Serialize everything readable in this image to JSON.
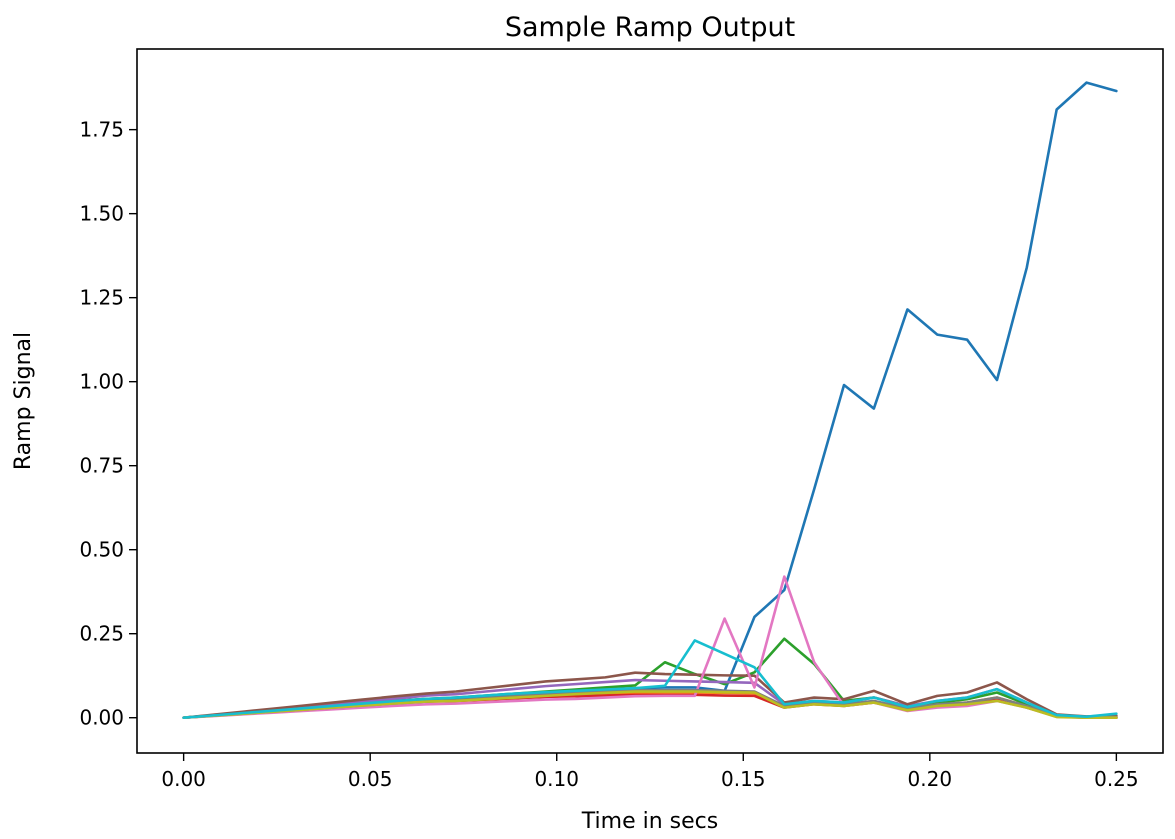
{
  "chart_data": {
    "type": "line",
    "title": "Sample Ramp Output",
    "xlabel": "Time in secs",
    "ylabel": "Ramp Signal",
    "xlim": [
      -0.0125,
      0.2625
    ],
    "ylim": [
      -0.105,
      1.99
    ],
    "xticks": [
      "0.00",
      "0.05",
      "0.10",
      "0.15",
      "0.20",
      "0.25"
    ],
    "xtick_values": [
      0.0,
      0.05,
      0.1,
      0.15,
      0.2,
      0.25
    ],
    "yticks": [
      "0.00",
      "0.25",
      "0.50",
      "0.75",
      "1.00",
      "1.25",
      "1.50",
      "1.75"
    ],
    "ytick_values": [
      0.0,
      0.25,
      0.5,
      0.75,
      1.0,
      1.25,
      1.5,
      1.75
    ],
    "grid": false,
    "x": [
      0.0,
      0.008,
      0.016,
      0.024,
      0.032,
      0.04,
      0.048,
      0.056,
      0.065,
      0.073,
      0.081,
      0.089,
      0.097,
      0.105,
      0.113,
      0.121,
      0.129,
      0.137,
      0.145,
      0.153,
      0.161,
      0.169,
      0.177,
      0.185,
      0.194,
      0.202,
      0.21,
      0.218,
      0.226,
      0.234,
      0.242,
      0.25
    ],
    "series": [
      {
        "color": "#1f77b4",
        "values": [
          0.0,
          0.007,
          0.014,
          0.021,
          0.028,
          0.035,
          0.042,
          0.05,
          0.056,
          0.058,
          0.064,
          0.07,
          0.075,
          0.08,
          0.083,
          0.088,
          0.09,
          0.09,
          0.08,
          0.3,
          0.38,
          0.68,
          0.99,
          0.92,
          1.215,
          1.14,
          1.125,
          1.005,
          1.34,
          1.81,
          1.89,
          1.865
        ]
      },
      {
        "color": "#ff7f0e",
        "values": [
          0.0,
          0.006,
          0.012,
          0.018,
          0.024,
          0.03,
          0.036,
          0.042,
          0.048,
          0.05,
          0.054,
          0.058,
          0.062,
          0.066,
          0.07,
          0.074,
          0.075,
          0.075,
          0.074,
          0.073,
          0.035,
          0.045,
          0.04,
          0.048,
          0.03,
          0.04,
          0.045,
          0.06,
          0.035,
          0.005,
          0.0,
          0.0
        ]
      },
      {
        "color": "#2ca02c",
        "values": [
          0.0,
          0.007,
          0.014,
          0.021,
          0.028,
          0.035,
          0.042,
          0.049,
          0.056,
          0.06,
          0.066,
          0.072,
          0.078,
          0.084,
          0.09,
          0.096,
          0.165,
          0.13,
          0.1,
          0.135,
          0.235,
          0.16,
          0.05,
          0.06,
          0.035,
          0.045,
          0.055,
          0.075,
          0.04,
          0.008,
          0.002,
          0.002
        ]
      },
      {
        "color": "#d62728",
        "values": [
          0.0,
          0.006,
          0.012,
          0.018,
          0.024,
          0.03,
          0.036,
          0.042,
          0.048,
          0.05,
          0.054,
          0.058,
          0.062,
          0.064,
          0.066,
          0.068,
          0.068,
          0.068,
          0.066,
          0.065,
          0.03,
          0.04,
          0.035,
          0.045,
          0.025,
          0.035,
          0.04,
          0.055,
          0.03,
          0.004,
          0.0,
          0.0
        ]
      },
      {
        "color": "#9467bd",
        "values": [
          0.0,
          0.008,
          0.016,
          0.024,
          0.032,
          0.04,
          0.048,
          0.056,
          0.066,
          0.07,
          0.078,
          0.086,
          0.094,
          0.1,
          0.106,
          0.112,
          0.11,
          0.108,
          0.106,
          0.104,
          0.04,
          0.05,
          0.045,
          0.06,
          0.035,
          0.05,
          0.06,
          0.085,
          0.045,
          0.008,
          0.002,
          0.004
        ]
      },
      {
        "color": "#8c564b",
        "values": [
          0.0,
          0.009,
          0.018,
          0.027,
          0.036,
          0.045,
          0.054,
          0.063,
          0.072,
          0.078,
          0.088,
          0.098,
          0.108,
          0.114,
          0.12,
          0.134,
          0.13,
          0.128,
          0.126,
          0.125,
          0.045,
          0.06,
          0.055,
          0.08,
          0.04,
          0.065,
          0.075,
          0.105,
          0.055,
          0.01,
          0.004,
          0.006
        ]
      },
      {
        "color": "#e377c2",
        "values": [
          0.0,
          0.005,
          0.01,
          0.015,
          0.02,
          0.025,
          0.03,
          0.035,
          0.04,
          0.042,
          0.046,
          0.05,
          0.054,
          0.056,
          0.06,
          0.064,
          0.065,
          0.065,
          0.295,
          0.09,
          0.42,
          0.165,
          0.035,
          0.045,
          0.02,
          0.03,
          0.035,
          0.05,
          0.03,
          0.003,
          0.0,
          0.0
        ]
      },
      {
        "color": "#7f7f7f",
        "values": [
          0.0,
          0.006,
          0.012,
          0.018,
          0.024,
          0.03,
          0.036,
          0.042,
          0.048,
          0.052,
          0.058,
          0.064,
          0.07,
          0.074,
          0.078,
          0.082,
          0.082,
          0.082,
          0.08,
          0.078,
          0.035,
          0.045,
          0.04,
          0.05,
          0.028,
          0.04,
          0.045,
          0.06,
          0.035,
          0.005,
          0.0,
          0.002
        ]
      },
      {
        "color": "#bcbd22",
        "values": [
          0.0,
          0.006,
          0.012,
          0.018,
          0.024,
          0.03,
          0.036,
          0.042,
          0.048,
          0.05,
          0.055,
          0.06,
          0.065,
          0.07,
          0.074,
          0.078,
          0.078,
          0.078,
          0.076,
          0.075,
          0.03,
          0.04,
          0.035,
          0.045,
          0.022,
          0.035,
          0.04,
          0.05,
          0.03,
          0.002,
          0.0,
          0.0
        ]
      },
      {
        "color": "#17becf",
        "values": [
          0.0,
          0.007,
          0.014,
          0.021,
          0.028,
          0.035,
          0.042,
          0.049,
          0.056,
          0.06,
          0.066,
          0.072,
          0.076,
          0.08,
          0.084,
          0.088,
          0.095,
          0.23,
          0.19,
          0.15,
          0.04,
          0.05,
          0.045,
          0.06,
          0.032,
          0.05,
          0.06,
          0.085,
          0.045,
          0.008,
          0.003,
          0.012
        ]
      }
    ]
  }
}
